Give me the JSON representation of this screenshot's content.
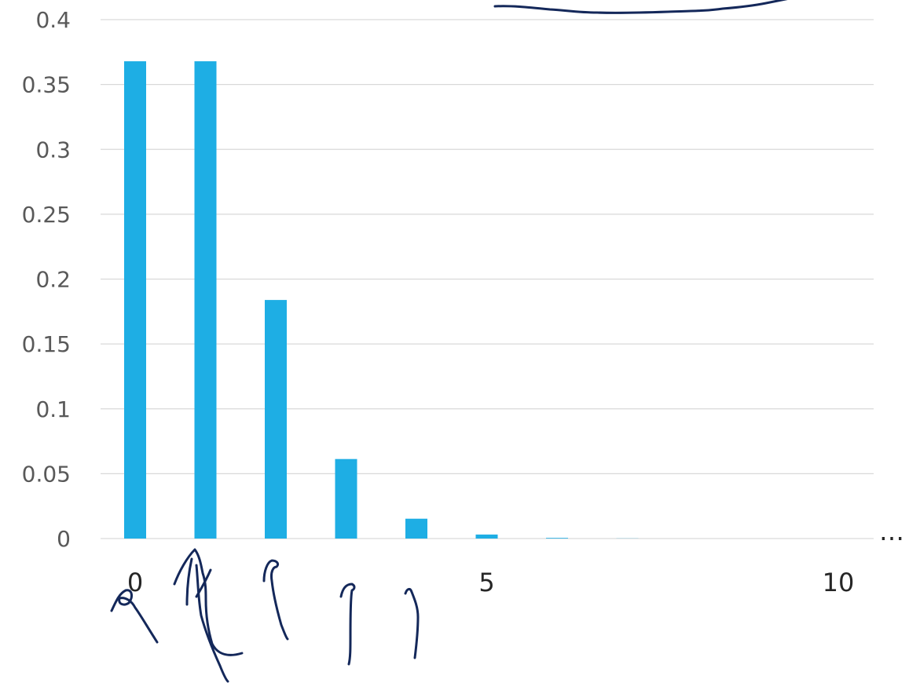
{
  "chart_data": {
    "type": "bar",
    "title": "",
    "xlabel": "",
    "ylabel": "",
    "categories": [
      "0",
      "1",
      "2",
      "3",
      "4",
      "5",
      "6",
      "7",
      "8",
      "9",
      "10"
    ],
    "values": [
      0.3679,
      0.3679,
      0.1839,
      0.0613,
      0.0153,
      0.0031,
      0.0005,
      0.0001,
      0.0,
      0.0,
      0.0
    ],
    "ylim": [
      0,
      0.4
    ],
    "yticks": [
      "0",
      "0.05",
      "0.1",
      "0.15",
      "0.2",
      "0.25",
      "0.3",
      "0.35",
      "0.4"
    ],
    "xtick_labels": [
      {
        "at": 0,
        "label": "0"
      },
      {
        "at": 5,
        "label": "5"
      },
      {
        "at": 10,
        "label": "10"
      }
    ],
    "continuation_label": "…",
    "grid": true,
    "legend": "none",
    "bar_color": "#1eaee4",
    "annotation_color": "#14285a"
  }
}
